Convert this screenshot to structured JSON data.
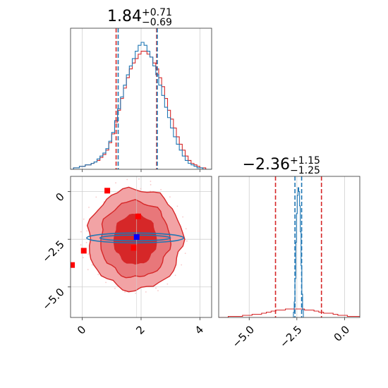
{
  "colors": {
    "red": "#d62728",
    "blue": "#1f77b4",
    "marker_red": "#ff0000",
    "marker_blue": "#0000ff",
    "grid": "#cfcfcf",
    "fill_outer": "#f2a3a5",
    "fill_mid": "#e8777a",
    "fill_inner": "#d62728"
  },
  "chart_data": [
    {
      "panel": "top-left",
      "type": "histogram",
      "title": {
        "value": "1.84",
        "upper": "+0.71",
        "lower": "−0.69"
      },
      "xlim": [
        -0.4,
        4.4
      ],
      "grid": true,
      "xticks": [
        0,
        2,
        4
      ],
      "quantile_lines": {
        "red": [
          1.15,
          2.53
        ],
        "blue": [
          1.22,
          2.55
        ]
      },
      "bins_start": -0.4,
      "bin_width": 0.1,
      "series": [
        {
          "color": "red",
          "counts": [
            0,
            1,
            1,
            2,
            2,
            3,
            3,
            4,
            5,
            6,
            8,
            10,
            13,
            18,
            24,
            32,
            40,
            48,
            55,
            62,
            68,
            72,
            75,
            78,
            80,
            80,
            78,
            76,
            72,
            68,
            62,
            56,
            48,
            40,
            34,
            28,
            22,
            17,
            13,
            9,
            6,
            4,
            3,
            2,
            1,
            1,
            0,
            0
          ]
        },
        {
          "color": "blue",
          "counts": [
            0,
            1,
            1,
            2,
            2,
            3,
            3,
            4,
            5,
            7,
            9,
            11,
            14,
            19,
            25,
            33,
            41,
            49,
            57,
            64,
            70,
            75,
            80,
            84,
            86,
            84,
            80,
            76,
            70,
            64,
            57,
            50,
            42,
            35,
            28,
            22,
            17,
            13,
            9,
            6,
            4,
            3,
            2,
            1,
            1,
            0,
            0,
            0
          ]
        }
      ]
    },
    {
      "panel": "bottom-left",
      "type": "scatter",
      "xlim": [
        -0.4,
        4.4
      ],
      "ylim": [
        -6.6,
        0.8
      ],
      "grid": true,
      "xticks": [
        0,
        2,
        4
      ],
      "xtick_labels": [
        "0",
        "2",
        "4"
      ],
      "yticks": [
        0,
        -2.5,
        -5
      ],
      "ytick_labels": [
        "0",
        "−2.5",
        "−5.0"
      ],
      "contours_red": [
        {
          "cx": 1.8,
          "cy": -2.5,
          "rx": 1.6,
          "ry": 2.65,
          "level": "outer"
        },
        {
          "cx": 1.8,
          "cy": -2.5,
          "rx": 1.18,
          "ry": 2.0,
          "level": "mid"
        },
        {
          "cx": 1.8,
          "cy": -2.5,
          "rx": 0.72,
          "ry": 1.3,
          "level": "inner"
        }
      ],
      "contours_blue": [
        {
          "cx": 1.8,
          "cy": -2.43,
          "rx": 1.65,
          "ry": 0.26
        },
        {
          "cx": 1.8,
          "cy": -2.43,
          "rx": 1.2,
          "ry": 0.15
        }
      ],
      "points_red": [
        {
          "x": 0.85,
          "y": 0.05
        },
        {
          "x": 1.9,
          "y": -1.3
        },
        {
          "x": 0.05,
          "y": -3.1
        },
        {
          "x": 1.75,
          "y": -2.95
        },
        {
          "x": -0.35,
          "y": -3.85
        }
      ],
      "points_blue": [
        {
          "x": 1.85,
          "y": -2.38
        }
      ]
    },
    {
      "panel": "bottom-right",
      "type": "histogram",
      "title": {
        "value": "−2.36",
        "upper": "+1.15",
        "lower": "−1.25"
      },
      "xlim": [
        -6.6,
        0.8
      ],
      "grid": true,
      "xticks": [
        -5,
        -2.5,
        0
      ],
      "xtick_labels": [
        "−5.0",
        "−2.5",
        "0.0"
      ],
      "quantile_lines": {
        "red": [
          -3.62,
          -1.21
        ],
        "blue": [
          -2.6,
          -2.25
        ]
      },
      "red_hist": {
        "bins_start": -6.6,
        "bin_width": 0.25,
        "counts": [
          0,
          0,
          1,
          1,
          1,
          2,
          2,
          3,
          3,
          4,
          5,
          6,
          7,
          7,
          8,
          8,
          8,
          8,
          7,
          7,
          6,
          5,
          4,
          4,
          3,
          2,
          2,
          1,
          1,
          1
        ]
      },
      "blue_hist": {
        "bins": [
          -2.68,
          -2.64,
          -2.6,
          -2.56,
          -2.52,
          -2.48,
          -2.44,
          -2.4,
          -2.36,
          -2.32,
          -2.28,
          -2.24,
          -2.2
        ],
        "counts": [
          4,
          12,
          30,
          58,
          80,
          94,
          100,
          97,
          86,
          66,
          40,
          18,
          6
        ]
      }
    }
  ]
}
